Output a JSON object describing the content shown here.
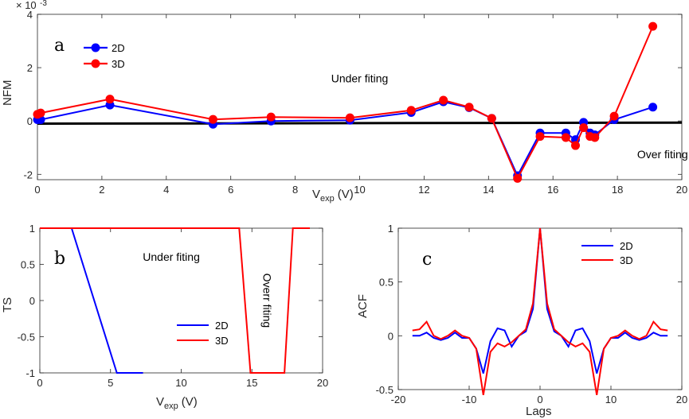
{
  "colors": {
    "series_2d": "#0000ff",
    "series_3d": "#ff0000",
    "zero_line": "#000000",
    "axis": "#262626"
  },
  "chart_data": [
    {
      "id": "a",
      "type": "line",
      "panel_label": "a",
      "xlabel": "V",
      "xlabel_sub": "exp",
      "xlabel_unit": "(V)",
      "ylabel": "NFM",
      "exponent_base": "× 10",
      "exponent_power": "-3",
      "xlim": [
        0,
        20
      ],
      "ylim": [
        -2.2,
        4
      ],
      "xticks": [
        0,
        2,
        4,
        6,
        8,
        10,
        12,
        14,
        16,
        18,
        20
      ],
      "yticks": [
        -2,
        0,
        2,
        4
      ],
      "xtick_labels": [
        "0",
        "2",
        "4",
        "6",
        "8",
        "10",
        "12",
        "14",
        "16",
        "18",
        "20"
      ],
      "ytick_labels": [
        "-2",
        "0",
        "2",
        "4"
      ],
      "markers": true,
      "reference_line": {
        "from": [
          0,
          -0.1
        ],
        "to": [
          20,
          -0.06
        ]
      },
      "annotations": [
        {
          "text": "Under fiting",
          "x": 10.0,
          "y": 1.45
        },
        {
          "text": "Over fiting",
          "x": 19.4,
          "y": -1.4
        }
      ],
      "legend": [
        "2D",
        "3D"
      ],
      "series": [
        {
          "name": "2D",
          "color_key": "series_2d",
          "x": [
            0.0,
            0.1,
            2.25,
            5.45,
            7.25,
            9.7,
            11.6,
            12.6,
            13.4,
            14.1,
            14.9,
            15.6,
            16.4,
            16.7,
            16.95,
            17.15,
            17.3,
            17.9,
            19.1
          ],
          "y": [
            0.05,
            0.05,
            0.6,
            -0.12,
            0.0,
            0.03,
            0.32,
            0.72,
            0.5,
            0.1,
            -2.05,
            -0.45,
            -0.45,
            -0.7,
            -0.05,
            -0.45,
            -0.52,
            0.05,
            0.52
          ]
        },
        {
          "name": "3D",
          "color_key": "series_3d",
          "x": [
            0.0,
            0.1,
            2.25,
            5.45,
            7.25,
            9.7,
            11.6,
            12.6,
            13.4,
            14.1,
            14.9,
            15.6,
            16.4,
            16.7,
            16.95,
            17.15,
            17.3,
            17.9,
            19.1
          ],
          "y": [
            0.25,
            0.3,
            0.82,
            0.06,
            0.15,
            0.12,
            0.4,
            0.78,
            0.52,
            0.1,
            -2.15,
            -0.58,
            -0.62,
            -0.92,
            -0.25,
            -0.58,
            -0.62,
            0.18,
            3.55
          ]
        }
      ]
    },
    {
      "id": "b",
      "type": "line",
      "panel_label": "b",
      "xlabel": "V",
      "xlabel_sub": "exp",
      "xlabel_unit": "(V)",
      "ylabel": "TS",
      "xlim": [
        0,
        20
      ],
      "ylim": [
        -1,
        1
      ],
      "xticks": [
        0,
        5,
        10,
        15,
        20
      ],
      "yticks": [
        -1,
        -0.5,
        0,
        0.5,
        1
      ],
      "xtick_labels": [
        "0",
        "5",
        "10",
        "15",
        "20"
      ],
      "ytick_labels": [
        "-1",
        "-0.5",
        "0",
        "0.5",
        "1"
      ],
      "markers": false,
      "annotations": [
        {
          "text": "Under fiting",
          "x": 9.3,
          "y": 0.55,
          "rotate": 0
        },
        {
          "text": "Overr fiting",
          "x": 15.8,
          "y": 0.0,
          "rotate": 90
        }
      ],
      "legend": [
        "2D",
        "3D"
      ],
      "series": [
        {
          "name": "2D",
          "color_key": "series_2d",
          "x": [
            0,
            2.25,
            5.45,
            7.3
          ],
          "y": [
            1,
            1,
            -1,
            -1
          ]
        },
        {
          "name": "3D",
          "color_key": "series_3d",
          "x": [
            0,
            14.1,
            14.9,
            17.3,
            17.9,
            19.1
          ],
          "y": [
            1,
            1,
            -1,
            -1,
            1,
            1
          ]
        }
      ]
    },
    {
      "id": "c",
      "type": "line",
      "panel_label": "c",
      "xlabel": "Lags",
      "ylabel": "ACF",
      "xlim": [
        -20,
        20
      ],
      "ylim": [
        -0.5,
        1
      ],
      "xticks": [
        -20,
        -10,
        0,
        10,
        20
      ],
      "yticks": [
        -0.5,
        0,
        0.5,
        1
      ],
      "xtick_labels": [
        "-20",
        "-10",
        "0",
        "10",
        "20"
      ],
      "ytick_labels": [
        "-0.5",
        "0",
        "0.5",
        "1"
      ],
      "markers": false,
      "legend": [
        "2D",
        "3D"
      ],
      "series": [
        {
          "name": "2D",
          "color_key": "series_2d",
          "x": [
            -18,
            -17,
            -16,
            -15,
            -14,
            -13,
            -12,
            -11,
            -10,
            -9,
            -8,
            -7,
            -6,
            -5,
            -4,
            -3,
            -2,
            -1,
            0,
            1,
            2,
            3,
            4,
            5,
            6,
            7,
            8,
            9,
            10,
            11,
            12,
            13,
            14,
            15,
            16,
            17,
            18
          ],
          "y": [
            0,
            0,
            0.03,
            -0.02,
            -0.04,
            -0.02,
            0.03,
            -0.02,
            -0.02,
            -0.12,
            -0.35,
            -0.05,
            0.07,
            0.05,
            -0.1,
            0.0,
            0.04,
            0.25,
            1.0,
            0.25,
            0.04,
            0.0,
            -0.1,
            0.05,
            0.07,
            -0.05,
            -0.35,
            -0.12,
            -0.02,
            -0.02,
            0.03,
            -0.02,
            -0.04,
            -0.02,
            0.03,
            0,
            0
          ]
        },
        {
          "name": "3D",
          "color_key": "series_3d",
          "x": [
            -18,
            -17,
            -16,
            -15,
            -14,
            -13,
            -12,
            -11,
            -10,
            -9,
            -8,
            -7,
            -6,
            -5,
            -4,
            -3,
            -2,
            -1,
            0,
            1,
            2,
            3,
            4,
            5,
            6,
            7,
            8,
            9,
            10,
            11,
            12,
            13,
            14,
            15,
            16,
            17,
            18
          ],
          "y": [
            0.05,
            0.06,
            0.13,
            0.0,
            -0.03,
            0.0,
            0.05,
            0.0,
            -0.02,
            -0.12,
            -0.55,
            -0.15,
            -0.07,
            -0.1,
            -0.06,
            0.0,
            0.06,
            0.3,
            1.0,
            0.3,
            0.06,
            0.0,
            -0.06,
            -0.1,
            -0.07,
            -0.15,
            -0.55,
            -0.12,
            -0.02,
            0.0,
            0.05,
            0.0,
            -0.03,
            0.0,
            0.13,
            0.06,
            0.05
          ]
        }
      ]
    }
  ]
}
